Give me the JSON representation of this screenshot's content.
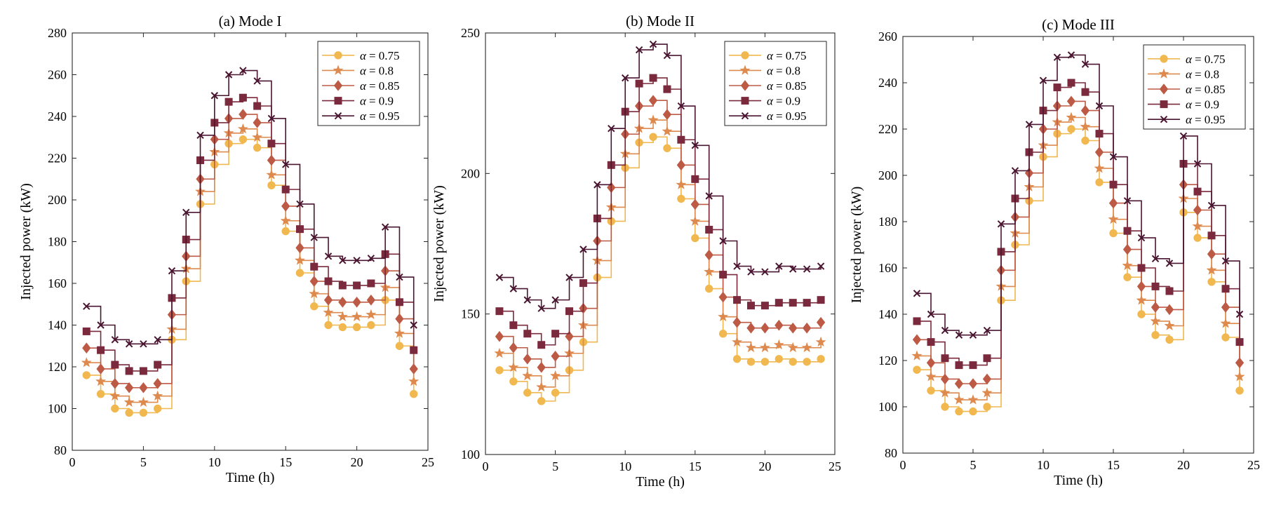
{
  "chart_data": [
    {
      "type": "line",
      "subtype": "stairs-with-markers",
      "title": "(a) Mode I",
      "xlabel": "Time (h)",
      "ylabel": "Injected power (kW)",
      "xlim": [
        0,
        25
      ],
      "ylim": [
        80,
        280
      ],
      "xticks": [
        0,
        5,
        10,
        15,
        20,
        25
      ],
      "yticks": [
        80,
        100,
        120,
        140,
        160,
        180,
        200,
        220,
        240,
        260,
        280
      ],
      "grid": false,
      "legend_position": "top-right",
      "x": [
        1,
        2,
        3,
        4,
        5,
        6,
        7,
        8,
        9,
        10,
        11,
        12,
        13,
        14,
        15,
        16,
        17,
        18,
        19,
        20,
        21,
        22,
        23,
        24
      ],
      "series": [
        {
          "name": "α = 0.75",
          "label_symbol": "α",
          "label_value": "= 0.75",
          "color": "#F0B84E",
          "marker": "circle",
          "values": [
            116,
            107,
            100,
            98,
            98,
            100,
            133,
            161,
            198,
            217,
            227,
            229,
            225,
            207,
            185,
            165,
            149,
            140,
            139,
            139,
            140,
            152,
            130,
            107
          ]
        },
        {
          "name": "α = 0.8",
          "label_symbol": "α",
          "label_value": "= 0.8",
          "color": "#DE8A4E",
          "marker": "star",
          "values": [
            122,
            113,
            106,
            103,
            103,
            106,
            138,
            167,
            204,
            223,
            232,
            234,
            230,
            212,
            190,
            171,
            155,
            146,
            144,
            144,
            145,
            158,
            136,
            113
          ]
        },
        {
          "name": "α = 0.85",
          "label_symbol": "α",
          "label_value": "= 0.85",
          "color": "#BD5A45",
          "marker": "diamond",
          "values": [
            129,
            119,
            112,
            110,
            110,
            112,
            145,
            173,
            210,
            229,
            239,
            241,
            237,
            219,
            197,
            177,
            161,
            152,
            151,
            151,
            152,
            166,
            143,
            119
          ]
        },
        {
          "name": "α = 0.9",
          "label_symbol": "α",
          "label_value": "= 0.9",
          "color": "#7A2A3C",
          "marker": "square",
          "values": [
            137,
            128,
            121,
            118,
            118,
            121,
            153,
            181,
            219,
            237,
            247,
            249,
            245,
            227,
            205,
            186,
            168,
            161,
            159,
            159,
            160,
            174,
            151,
            128
          ]
        },
        {
          "name": "α = 0.95",
          "label_symbol": "α",
          "label_value": "= 0.95",
          "color": "#4A1530",
          "marker": "x",
          "values": [
            149,
            140,
            133,
            131,
            131,
            133,
            166,
            194,
            231,
            250,
            260,
            262,
            257,
            239,
            217,
            198,
            182,
            173,
            171,
            171,
            172,
            187,
            163,
            140
          ]
        }
      ]
    },
    {
      "type": "line",
      "subtype": "stairs-with-markers",
      "title": "(b) Mode II",
      "xlabel": "Time (h)",
      "ylabel": "Injected power (kW)",
      "xlim": [
        0,
        25
      ],
      "ylim": [
        100,
        250
      ],
      "xticks": [
        0,
        5,
        10,
        15,
        20,
        25
      ],
      "yticks": [
        100,
        150,
        200,
        250
      ],
      "grid": false,
      "legend_position": "top-right",
      "x": [
        1,
        2,
        3,
        4,
        5,
        6,
        7,
        8,
        9,
        10,
        11,
        12,
        13,
        14,
        15,
        16,
        17,
        18,
        19,
        20,
        21,
        22,
        23,
        24
      ],
      "series": [
        {
          "name": "α = 0.75",
          "label_symbol": "α",
          "label_value": "= 0.75",
          "color": "#F0B84E",
          "marker": "circle",
          "values": [
            130,
            126,
            122,
            119,
            122,
            130,
            140,
            163,
            183,
            202,
            211,
            213,
            209,
            191,
            177,
            159,
            143,
            134,
            133,
            133,
            134,
            133,
            133,
            134
          ]
        },
        {
          "name": "α = 0.8",
          "label_symbol": "α",
          "label_value": "= 0.8",
          "color": "#DE8A4E",
          "marker": "star",
          "values": [
            136,
            131,
            128,
            124,
            128,
            136,
            146,
            169,
            188,
            207,
            216,
            219,
            215,
            196,
            183,
            165,
            149,
            140,
            138,
            138,
            139,
            138,
            138,
            140
          ]
        },
        {
          "name": "α = 0.85",
          "label_symbol": "α",
          "label_value": "= 0.85",
          "color": "#BD5A45",
          "marker": "diamond",
          "values": [
            142,
            138,
            134,
            131,
            135,
            142,
            152,
            176,
            195,
            214,
            224,
            226,
            221,
            203,
            189,
            171,
            156,
            147,
            145,
            145,
            146,
            145,
            145,
            147
          ]
        },
        {
          "name": "α = 0.9",
          "label_symbol": "α",
          "label_value": "= 0.9",
          "color": "#7A2A3C",
          "marker": "square",
          "values": [
            151,
            146,
            143,
            139,
            143,
            151,
            161,
            184,
            203,
            222,
            232,
            234,
            230,
            212,
            198,
            180,
            164,
            155,
            153,
            153,
            154,
            154,
            154,
            155
          ]
        },
        {
          "name": "α = 0.95",
          "label_symbol": "α",
          "label_value": "= 0.95",
          "color": "#4A1530",
          "marker": "x",
          "values": [
            163,
            159,
            155,
            152,
            155,
            163,
            173,
            196,
            216,
            234,
            244,
            246,
            242,
            224,
            210,
            192,
            176,
            167,
            165,
            165,
            167,
            166,
            166,
            167
          ]
        }
      ]
    },
    {
      "type": "line",
      "subtype": "stairs-with-markers",
      "title": "(c) Mode III",
      "xlabel": "Time (h)",
      "ylabel": "Injected power (kW)",
      "xlim": [
        0,
        25
      ],
      "ylim": [
        80,
        260
      ],
      "xticks": [
        0,
        5,
        10,
        15,
        20,
        25
      ],
      "yticks": [
        80,
        100,
        120,
        140,
        160,
        180,
        200,
        220,
        240,
        260
      ],
      "grid": false,
      "legend_position": "top-right",
      "x": [
        1,
        2,
        3,
        4,
        5,
        6,
        7,
        8,
        9,
        10,
        11,
        12,
        13,
        14,
        15,
        16,
        17,
        18,
        19,
        20,
        21,
        22,
        23,
        24
      ],
      "series": [
        {
          "name": "α = 0.75",
          "label_symbol": "α",
          "label_value": "= 0.75",
          "color": "#F0B84E",
          "marker": "circle",
          "values": [
            116,
            107,
            100,
            98,
            98,
            100,
            146,
            170,
            189,
            208,
            218,
            220,
            215,
            197,
            175,
            156,
            140,
            131,
            129,
            184,
            173,
            154,
            130,
            107
          ]
        },
        {
          "name": "α = 0.8",
          "label_symbol": "α",
          "label_value": "= 0.8",
          "color": "#DE8A4E",
          "marker": "star",
          "values": [
            122,
            113,
            106,
            103,
            103,
            106,
            152,
            175,
            195,
            213,
            223,
            225,
            221,
            203,
            181,
            161,
            146,
            137,
            135,
            190,
            178,
            159,
            136,
            113
          ]
        },
        {
          "name": "α = 0.85",
          "label_symbol": "α",
          "label_value": "= 0.85",
          "color": "#BD5A45",
          "marker": "diamond",
          "values": [
            129,
            119,
            112,
            110,
            110,
            112,
            159,
            182,
            201,
            220,
            230,
            232,
            228,
            210,
            188,
            168,
            152,
            143,
            142,
            196,
            185,
            166,
            143,
            119
          ]
        },
        {
          "name": "α = 0.9",
          "label_symbol": "α",
          "label_value": "= 0.9",
          "color": "#7A2A3C",
          "marker": "square",
          "values": [
            137,
            128,
            121,
            118,
            118,
            121,
            167,
            190,
            210,
            228,
            238,
            240,
            236,
            218,
            196,
            176,
            160,
            152,
            150,
            205,
            193,
            174,
            151,
            128
          ]
        },
        {
          "name": "α = 0.95",
          "label_symbol": "α",
          "label_value": "= 0.95",
          "color": "#4A1530",
          "marker": "x",
          "values": [
            149,
            140,
            133,
            131,
            131,
            133,
            179,
            202,
            222,
            241,
            251,
            252,
            248,
            230,
            208,
            189,
            173,
            164,
            162,
            217,
            205,
            187,
            163,
            140
          ]
        }
      ]
    }
  ]
}
